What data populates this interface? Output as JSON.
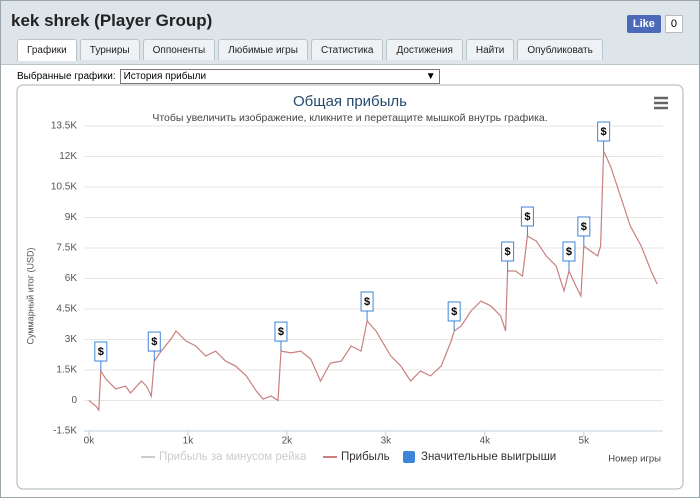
{
  "header": {
    "title": "kek shrek (Player Group)",
    "like_label": "Like",
    "like_count": "0"
  },
  "tabs": [
    "Графики",
    "Турниры",
    "Оппоненты",
    "Любимые игры",
    "Статистика",
    "Достижения",
    "Найти",
    "Опубликовать"
  ],
  "active_tab": 0,
  "selector": {
    "label": "Выбранные графики:",
    "value": "История прибыли"
  },
  "chart_data": {
    "type": "line",
    "title": "Общая прибыль",
    "subtitle": "Чтобы увеличить изображение, кликните и перетащите мышкой внутрь графика.",
    "y_label": "Суммарный итог (USD)",
    "x_label": "Номер игры",
    "xlim": [
      -50,
      5800
    ],
    "ylim": [
      -1500,
      13500
    ],
    "xticks": [
      {
        "value": 0,
        "label": "0k"
      },
      {
        "value": 1000,
        "label": "1k"
      },
      {
        "value": 2000,
        "label": "2k"
      },
      {
        "value": 3000,
        "label": "3k"
      },
      {
        "value": 4000,
        "label": "4k"
      },
      {
        "value": 5000,
        "label": "5k"
      }
    ],
    "yticks": [
      {
        "value": -1500,
        "label": "-1.5K"
      },
      0,
      {
        "value": 1500,
        "label": "1.5K"
      },
      {
        "value": 3000,
        "label": "3K"
      },
      {
        "value": 4500,
        "label": "4.5K"
      },
      {
        "value": 6000,
        "label": "6K"
      },
      {
        "value": 7500,
        "label": "7.5K"
      },
      {
        "value": 9000,
        "label": "9K"
      },
      {
        "value": 10500,
        "label": "10.5K"
      },
      {
        "value": 12000,
        "label": "12K"
      },
      {
        "value": 13500,
        "label": "13.5K"
      }
    ],
    "grid": true,
    "flag_label": "$",
    "series": [
      {
        "name": "Прибыль за минусом рейка",
        "color": "#cccccc",
        "visible": false
      },
      {
        "name": "Прибыль",
        "color": "#c8807f",
        "x": [
          0,
          70,
          100,
          120,
          170,
          270,
          370,
          420,
          530,
          580,
          630,
          660,
          730,
          830,
          880,
          980,
          1080,
          1180,
          1280,
          1380,
          1480,
          1590,
          1690,
          1760,
          1840,
          1910,
          1940,
          2040,
          2140,
          2240,
          2340,
          2440,
          2550,
          2650,
          2750,
          2810,
          2900,
          3050,
          3150,
          3250,
          3350,
          3450,
          3560,
          3660,
          3690,
          3760,
          3860,
          3960,
          4060,
          4160,
          4210,
          4230,
          4310,
          4380,
          4430,
          4520,
          4620,
          4720,
          4800,
          4850,
          4920,
          4970,
          5000,
          5070,
          5140,
          5170,
          5200,
          5270,
          5370,
          5470,
          5580,
          5680,
          5740
        ],
        "values": [
          0,
          -270,
          -470,
          1450,
          1060,
          570,
          710,
          370,
          960,
          710,
          220,
          1940,
          2430,
          3030,
          3420,
          2930,
          2680,
          2190,
          2430,
          1940,
          1700,
          1210,
          470,
          70,
          220,
          0,
          2430,
          2340,
          2430,
          2040,
          960,
          1840,
          1940,
          2680,
          2430,
          3910,
          3420,
          2190,
          1700,
          960,
          1450,
          1210,
          1700,
          2930,
          3420,
          3660,
          4400,
          4890,
          4650,
          4160,
          3420,
          6370,
          6370,
          6120,
          8090,
          7840,
          7110,
          6620,
          5390,
          6370,
          5630,
          5140,
          7600,
          7350,
          7110,
          7600,
          12270,
          11530,
          10060,
          8580,
          7600,
          6370,
          5730
        ]
      },
      {
        "name": "Значительные выигрыши",
        "color": "#3d85d8",
        "x": [
          120,
          660,
          1940,
          2810,
          3690,
          4230,
          4430,
          4850,
          5000,
          5200
        ],
        "values": [
          1450,
          1940,
          2430,
          3910,
          3420,
          6370,
          8090,
          6370,
          7600,
          12270
        ]
      }
    ]
  }
}
